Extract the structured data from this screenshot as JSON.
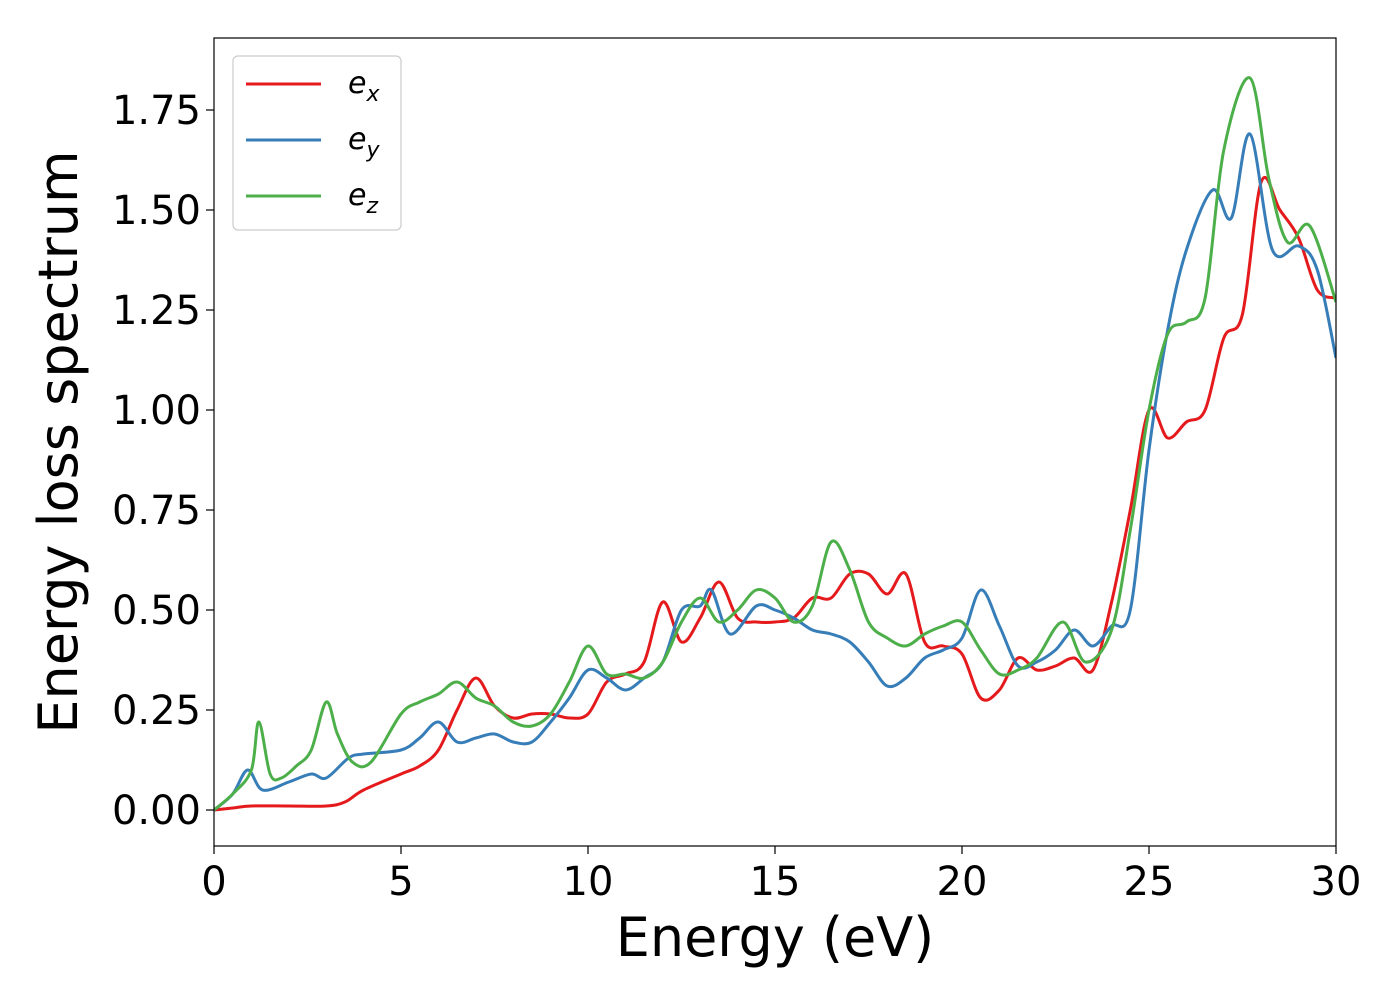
{
  "chart_data": {
    "type": "line",
    "title": "",
    "xlabel": "Energy (eV)",
    "ylabel": "Energy loss spectrum",
    "xlim": [
      0,
      30
    ],
    "ylim": [
      -0.09,
      1.93
    ],
    "xticks": [
      0,
      5,
      10,
      15,
      20,
      25,
      30
    ],
    "xtick_labels": [
      "0",
      "5",
      "10",
      "15",
      "20",
      "25",
      "30"
    ],
    "yticks": [
      0.0,
      0.25,
      0.5,
      0.75,
      1.0,
      1.25,
      1.5,
      1.75
    ],
    "ytick_labels": [
      "0.00",
      "0.25",
      "0.50",
      "0.75",
      "1.00",
      "1.25",
      "1.50",
      "1.75"
    ],
    "grid": false,
    "legend_position": "top-left",
    "series": [
      {
        "name": "e_x",
        "legend_base": "e",
        "legend_sub": "x",
        "color": "#e41a1c",
        "x": [
          0,
          0.5,
          1,
          2,
          3,
          3.5,
          4,
          5,
          5.5,
          6,
          6.5,
          7,
          7.5,
          8,
          8.5,
          9,
          9.5,
          10,
          10.5,
          11,
          11.5,
          12,
          12.5,
          13,
          13.5,
          14,
          14.5,
          15,
          15.5,
          16,
          16.5,
          17,
          17.5,
          18,
          18.5,
          19,
          19.5,
          20,
          20.5,
          21,
          21.5,
          22,
          22.5,
          23,
          23.5,
          24,
          24.5,
          25,
          25.5,
          26,
          26.5,
          27,
          27.5,
          28,
          28.5,
          29,
          29.5,
          30
        ],
        "y": [
          0.0,
          0.005,
          0.01,
          0.01,
          0.01,
          0.02,
          0.05,
          0.09,
          0.11,
          0.15,
          0.25,
          0.33,
          0.26,
          0.23,
          0.24,
          0.24,
          0.23,
          0.24,
          0.32,
          0.34,
          0.37,
          0.52,
          0.42,
          0.48,
          0.57,
          0.48,
          0.47,
          0.47,
          0.48,
          0.53,
          0.53,
          0.59,
          0.59,
          0.54,
          0.59,
          0.42,
          0.41,
          0.39,
          0.28,
          0.3,
          0.38,
          0.35,
          0.36,
          0.38,
          0.35,
          0.52,
          0.75,
          1.0,
          0.93,
          0.97,
          1.0,
          1.18,
          1.24,
          1.57,
          1.5,
          1.43,
          1.3,
          1.28
        ]
      },
      {
        "name": "e_y",
        "legend_base": "e",
        "legend_sub": "y",
        "color": "#377eb8",
        "x": [
          0,
          0.5,
          0.9,
          1.3,
          2,
          2.6,
          3,
          3.6,
          4,
          5,
          5.5,
          6,
          6.5,
          7,
          7.5,
          8,
          8.5,
          9,
          9.5,
          10,
          10.5,
          11,
          11.5,
          12,
          12.5,
          13,
          13.3,
          13.8,
          14.5,
          15,
          15.5,
          16,
          16.5,
          17,
          17.5,
          18,
          18.5,
          19,
          19.5,
          20,
          20.5,
          21,
          21.5,
          22,
          22.5,
          23,
          23.5,
          24,
          24.5,
          25,
          25.5,
          26,
          26.7,
          27.2,
          27.7,
          28.3,
          29,
          29.5,
          30
        ],
        "y": [
          0.0,
          0.04,
          0.1,
          0.05,
          0.07,
          0.09,
          0.08,
          0.13,
          0.14,
          0.15,
          0.18,
          0.22,
          0.17,
          0.18,
          0.19,
          0.17,
          0.17,
          0.22,
          0.28,
          0.35,
          0.33,
          0.3,
          0.33,
          0.37,
          0.5,
          0.51,
          0.55,
          0.44,
          0.51,
          0.5,
          0.48,
          0.45,
          0.44,
          0.42,
          0.37,
          0.31,
          0.33,
          0.38,
          0.4,
          0.43,
          0.55,
          0.46,
          0.36,
          0.37,
          0.4,
          0.45,
          0.41,
          0.46,
          0.5,
          0.9,
          1.2,
          1.4,
          1.55,
          1.48,
          1.69,
          1.4,
          1.41,
          1.35,
          1.13
        ]
      },
      {
        "name": "e_z",
        "legend_base": "e",
        "legend_sub": "z",
        "color": "#4daf4a",
        "x": [
          0,
          0.5,
          1,
          1.2,
          1.5,
          1.8,
          2.2,
          2.6,
          3,
          3.3,
          3.7,
          4.2,
          5,
          5.5,
          6,
          6.5,
          7,
          7.5,
          8,
          8.5,
          9,
          9.5,
          10,
          10.5,
          11,
          11.5,
          12,
          12.5,
          13,
          13.5,
          14,
          14.5,
          15,
          15.5,
          16,
          16.5,
          17,
          17.5,
          18,
          18.5,
          19,
          19.5,
          20,
          20.5,
          21,
          21.5,
          22,
          22.7,
          23.3,
          24,
          24.5,
          25,
          25.5,
          26,
          26.5,
          27,
          27.7,
          28.2,
          28.7,
          29.3,
          30
        ],
        "y": [
          0.0,
          0.04,
          0.1,
          0.22,
          0.09,
          0.08,
          0.11,
          0.15,
          0.27,
          0.19,
          0.12,
          0.12,
          0.24,
          0.27,
          0.29,
          0.32,
          0.28,
          0.26,
          0.22,
          0.21,
          0.24,
          0.32,
          0.41,
          0.34,
          0.34,
          0.33,
          0.37,
          0.47,
          0.53,
          0.47,
          0.5,
          0.55,
          0.53,
          0.47,
          0.51,
          0.67,
          0.6,
          0.47,
          0.43,
          0.41,
          0.44,
          0.46,
          0.47,
          0.4,
          0.34,
          0.35,
          0.38,
          0.47,
          0.37,
          0.45,
          0.7,
          1.0,
          1.19,
          1.22,
          1.28,
          1.65,
          1.83,
          1.58,
          1.42,
          1.46,
          1.27
        ]
      }
    ]
  }
}
